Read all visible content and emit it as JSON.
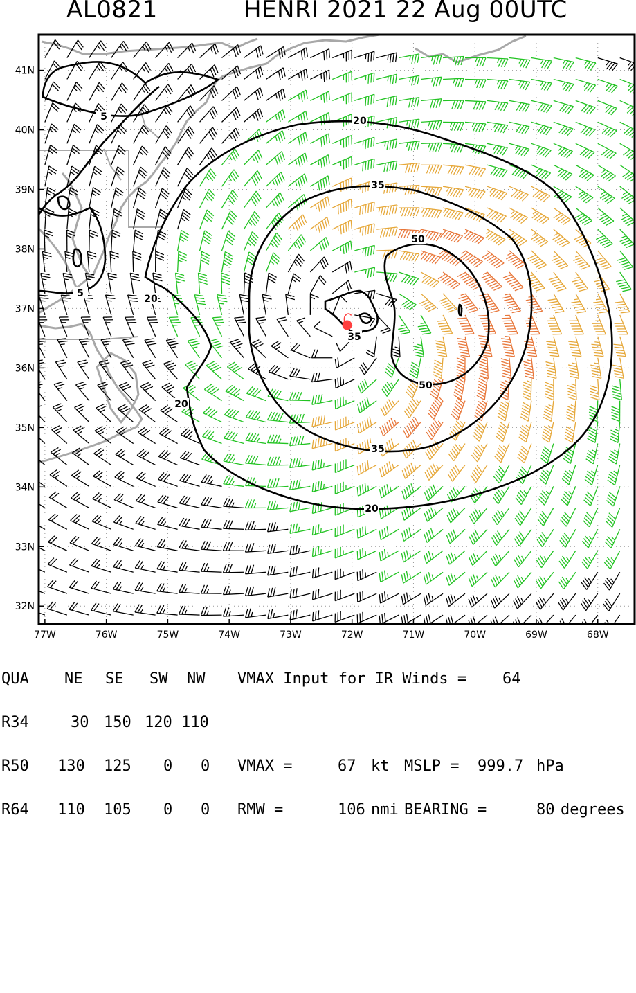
{
  "header": {
    "storm_id": "AL0821",
    "storm_title": "HENRI 2021 22 Aug 00UTC"
  },
  "chart_data": {
    "type": "wind_barb_map",
    "xlim": [
      -77.1,
      -67.4
    ],
    "ylim": [
      31.7,
      41.6
    ],
    "x_ticks": [
      -77,
      -76,
      -75,
      -74,
      -73,
      -72,
      -71,
      -70,
      -69,
      -68
    ],
    "x_tick_labels": [
      "77W",
      "76W",
      "75W",
      "74W",
      "73W",
      "72W",
      "71W",
      "70W",
      "69W",
      "68W"
    ],
    "y_ticks": [
      32,
      33,
      34,
      35,
      36,
      37,
      38,
      39,
      40,
      41
    ],
    "y_tick_labels": [
      "32N",
      "33N",
      "34N",
      "35N",
      "36N",
      "37N",
      "38N",
      "39N",
      "40N",
      "41N"
    ],
    "grid": "dotted",
    "storm_center": {
      "lon": -72.08,
      "lat": 36.72
    },
    "contours": [
      {
        "level": 5,
        "label": "5"
      },
      {
        "level": 20,
        "label": "20"
      },
      {
        "level": 35,
        "label": "35"
      },
      {
        "level": 50,
        "label": "50"
      }
    ],
    "barb_colors": {
      "below_34": "#000000",
      "34_to_49": "#22c322",
      "50_to_63": "#e6a83a",
      "64_plus": "#e8773a"
    },
    "map_line_color": "#a8a8a8",
    "center_color": "#ff4040"
  },
  "footer": {
    "header_row": [
      "QUA",
      "NE",
      "SE",
      "SW",
      "NW"
    ],
    "rows": [
      {
        "label": "R34",
        "values": [
          "30",
          "150",
          "120",
          "110"
        ]
      },
      {
        "label": "R50",
        "values": [
          "130",
          "125",
          "0",
          "0"
        ]
      },
      {
        "label": "R64",
        "values": [
          "110",
          "105",
          "0",
          "0"
        ]
      }
    ],
    "vmax_input_label": "VMAX Input for IR Winds =",
    "vmax_input_value": "64",
    "vmax_label": "VMAX =",
    "vmax_value": "67",
    "vmax_unit": "kt",
    "mslp_label": "MSLP =",
    "mslp_value": "999.7",
    "mslp_unit": "hPa",
    "rmw_label": "RMW =",
    "rmw_value": "106",
    "rmw_unit": "nmi",
    "bearing_label": "BEARING =",
    "bearing_value": "80",
    "bearing_unit": "degrees"
  }
}
